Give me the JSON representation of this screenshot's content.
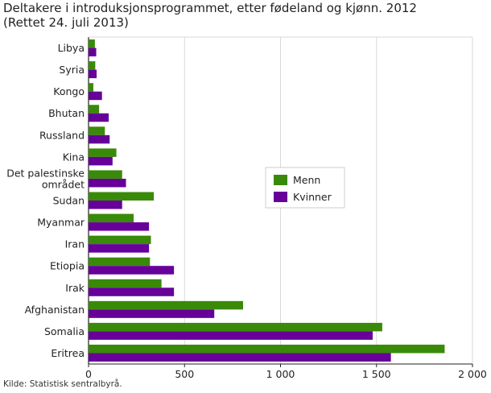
{
  "title_line1": "Deltakere i introduksjonsprogrammet, etter fødeland og kjønn. 2012",
  "title_line2": "(Rettet 24. juli 2013)",
  "source": "Kilde: Statistisk sentralbyrå.",
  "chart_data": {
    "type": "bar",
    "orientation": "horizontal",
    "title": "Deltakere i introduksjonsprogrammet, etter fødeland og kjønn. 2012",
    "subtitle": "(Rettet 24. juli 2013)",
    "categories": [
      "Libya",
      "Syria",
      "Kongo",
      "Bhutan",
      "Russland",
      "Kina",
      "Det palestinske området",
      "Sudan",
      "Myanmar",
      "Iran",
      "Etiopia",
      "Irak",
      "Afghanistan",
      "Somalia",
      "Eritrea"
    ],
    "category_label_lines": [
      [
        "Libya"
      ],
      [
        "Syria"
      ],
      [
        "Kongo"
      ],
      [
        "Bhutan"
      ],
      [
        "Russland"
      ],
      [
        "Kina"
      ],
      [
        "Det palestinske",
        "området"
      ],
      [
        "Sudan"
      ],
      [
        "Myanmar"
      ],
      [
        "Iran"
      ],
      [
        "Etiopia"
      ],
      [
        "Irak"
      ],
      [
        "Afghanistan"
      ],
      [
        "Somalia"
      ],
      [
        "Eritrea"
      ]
    ],
    "series": [
      {
        "name": "Menn",
        "color": "#3a8a09",
        "values": [
          33,
          35,
          25,
          55,
          85,
          145,
          175,
          340,
          235,
          325,
          320,
          380,
          805,
          1530,
          1855
        ]
      },
      {
        "name": "Kvinner",
        "color": "#660099",
        "values": [
          40,
          42,
          70,
          105,
          110,
          125,
          195,
          175,
          315,
          315,
          445,
          445,
          655,
          1480,
          1575
        ]
      }
    ],
    "xticks": [
      0,
      500,
      1000,
      1500,
      2000
    ],
    "xtick_labels": [
      "0",
      "500",
      "1 000",
      "1 500",
      "2 000"
    ],
    "xlim": [
      0,
      2000
    ],
    "xlabel": "",
    "ylabel": "",
    "grid": "vertical",
    "legend_position": "right-center"
  }
}
